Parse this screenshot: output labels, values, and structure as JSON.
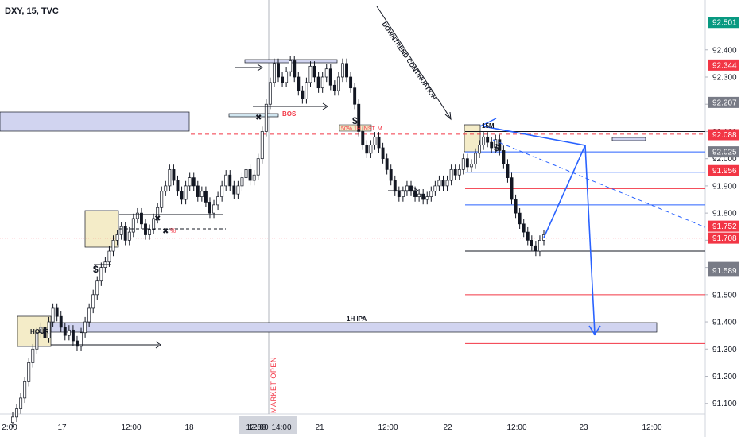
{
  "symbol_header": "DXY, 15, TVC",
  "chart_data": {
    "type": "candlestick",
    "title": "DXY, 15, TVC",
    "ylim": [
      91.07,
      92.56
    ],
    "y_ticks": [
      "92.400",
      "92.300",
      "92.200",
      "92.100",
      "92.000",
      "91.900",
      "91.800",
      "91.700",
      "91.600",
      "91.500",
      "91.400",
      "91.300",
      "91.200",
      "91.100"
    ],
    "x_ticks": [
      "2:00",
      "17",
      "12:00",
      "18",
      "12:00",
      "21",
      "12:00",
      "22",
      "12:00",
      "23",
      "12:00"
    ],
    "time_highlight": {
      "labels": [
        "12:00",
        "14:00"
      ]
    },
    "price_tags": [
      {
        "value": "92.501",
        "color": "#089981"
      },
      {
        "value": "92.344",
        "color": "#f23645"
      },
      {
        "value": "92.207",
        "color": "#787b86"
      },
      {
        "value": "92.088",
        "color": "#f23645"
      },
      {
        "value": "92.025",
        "color": "#787b86"
      },
      {
        "value": "91.956",
        "color": "#f23645"
      },
      {
        "value": "91.752",
        "color": "#f23645"
      },
      {
        "value": "91.708",
        "color": "#f23645"
      },
      {
        "value": "91.600",
        "color": "#787b86"
      },
      {
        "value": "91.589",
        "color": "#787b86"
      }
    ],
    "annotations": {
      "downtrend": "DOWNTREND CONTINUATION",
      "bos": "BOS",
      "ipa": "1H IPA",
      "market_open": "MARKET OPEN",
      "inst": "50% 1H INST. M",
      "label_15m": "15M",
      "label_hour": "HOUR",
      "dollar_1": "$",
      "dollar_2": "$",
      "dollar_3": "$",
      "pct": "%",
      "cross_1": "✖",
      "cross_2": "✖",
      "cross_3": "✖"
    },
    "colors": {
      "up": "#089981",
      "down": "#131722",
      "candle": "#131722",
      "zone_fill": "#d1d4f0",
      "accent_blue": "#2962ff",
      "accent_red": "#f23645"
    },
    "series": [
      {
        "name": "close",
        "values": [
          91.05,
          91.08,
          91.12,
          91.18,
          91.25,
          91.3,
          91.36,
          91.38,
          91.34,
          91.4,
          91.45,
          91.42,
          91.38,
          91.35,
          91.37,
          91.33,
          91.31,
          91.36,
          91.4,
          91.45,
          91.5,
          91.55,
          91.6,
          91.62,
          91.66,
          91.7,
          91.72,
          91.75,
          91.7,
          91.73,
          91.78,
          91.8,
          91.76,
          91.72,
          91.74,
          91.78,
          91.82,
          91.88,
          91.9,
          91.96,
          91.92,
          91.88,
          91.85,
          91.9,
          91.93,
          91.9,
          91.86,
          91.88,
          91.84,
          91.8,
          91.83,
          91.86,
          91.9,
          91.94,
          91.9,
          91.87,
          91.9,
          91.93,
          91.96,
          91.92,
          91.94,
          92.0,
          92.1,
          92.2,
          92.28,
          92.35,
          92.3,
          92.28,
          92.32,
          92.36,
          92.3,
          92.25,
          92.22,
          92.28,
          92.34,
          92.3,
          92.26,
          92.3,
          92.33,
          92.27,
          92.25,
          92.3,
          92.35,
          92.3,
          92.26,
          92.2,
          92.1,
          92.05,
          92.02,
          92.05,
          92.08,
          92.04,
          92.0,
          91.96,
          91.92,
          91.88,
          91.86,
          91.88,
          91.9,
          91.88,
          91.86,
          91.87,
          91.85,
          91.86,
          91.88,
          91.9,
          91.92,
          91.9,
          91.92,
          91.96,
          91.94,
          91.96,
          92.0,
          91.97,
          91.98,
          92.02,
          92.05,
          92.08,
          92.06,
          92.04,
          92.07,
          92.03,
          91.98,
          91.93,
          91.85,
          91.8,
          91.76,
          91.73,
          91.7,
          91.68,
          91.66,
          91.7,
          91.72
        ]
      }
    ],
    "levels": [
      {
        "value": 92.1,
        "color": "#131722",
        "style": "solid"
      },
      {
        "value": 92.025,
        "color": "#2962ff",
        "style": "solid"
      },
      {
        "value": 91.95,
        "color": "#2962ff",
        "style": "solid"
      },
      {
        "value": 91.89,
        "color": "#f23645",
        "style": "solid"
      },
      {
        "value": 91.83,
        "color": "#2962ff",
        "style": "solid"
      },
      {
        "value": 91.66,
        "color": "#131722",
        "style": "solid"
      },
      {
        "value": 91.5,
        "color": "#f23645",
        "style": "solid"
      },
      {
        "value": 91.32,
        "color": "#f23645",
        "style": "solid"
      },
      {
        "value": 92.09,
        "color": "#f23645",
        "style": "dashed"
      },
      {
        "value": 91.708,
        "color": "#f23645",
        "style": "dotted"
      }
    ]
  }
}
